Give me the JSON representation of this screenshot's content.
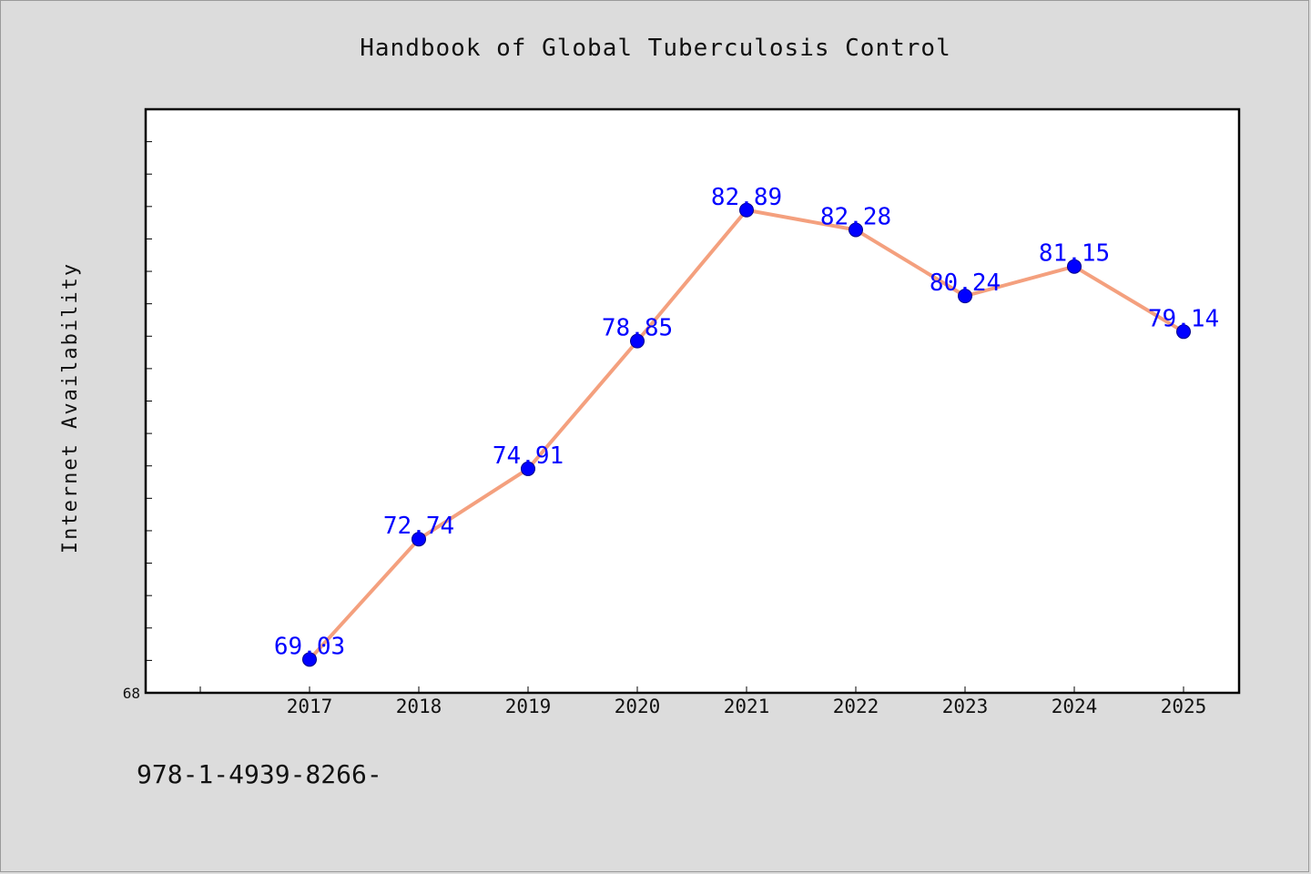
{
  "chart_data": {
    "type": "line",
    "title": "Handbook of Global Tuberculosis Control",
    "xlabel": "",
    "ylabel": "Internet Availability",
    "x": [
      "2017",
      "2018",
      "2019",
      "2020",
      "2021",
      "2022",
      "2023",
      "2024",
      "2025"
    ],
    "series": [
      {
        "values": [
          69.03,
          72.74,
          74.91,
          78.85,
          82.89,
          82.28,
          80.24,
          81.15,
          79.14
        ],
        "labels": [
          "69.03",
          "72.74",
          "74.91",
          "78.85",
          "82.89",
          "82.28",
          "80.24",
          "81.15",
          "79.14"
        ],
        "line_color": "#f4a07e",
        "marker_color": "#0000ff"
      }
    ],
    "ylim": [
      68,
      86
    ],
    "y_tick_labels": [
      "68"
    ],
    "grid": false,
    "legend": "none",
    "label_color": "#0000ff"
  },
  "footer": {
    "isbn": "978-1-4939-8266-"
  }
}
